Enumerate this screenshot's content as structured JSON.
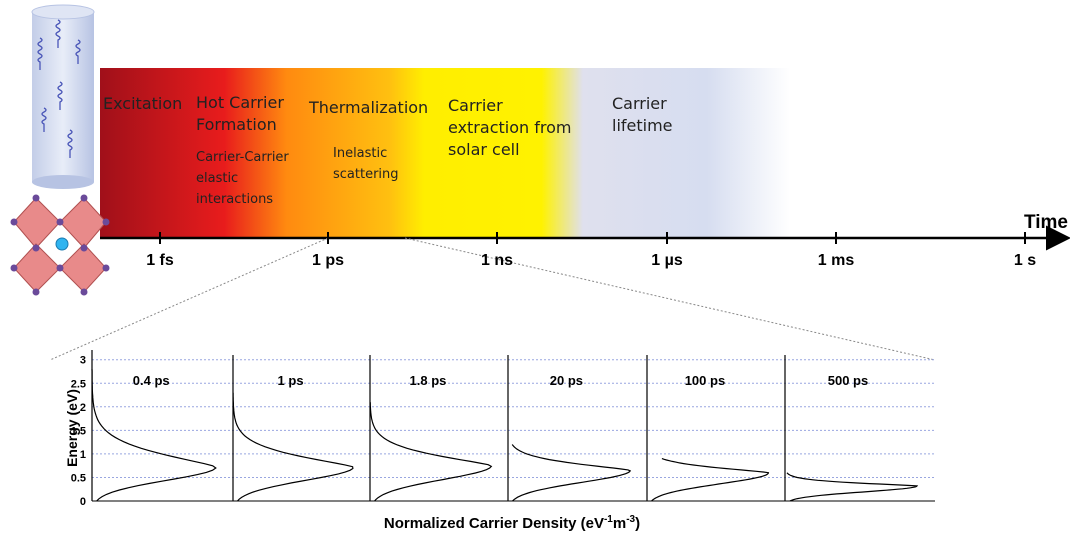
{
  "timeline": {
    "axis_label": "Time",
    "ticks": [
      "1 fs",
      "1 ps",
      "1 ns",
      "1 µs",
      "1 ms",
      "1 s"
    ]
  },
  "phases": [
    {
      "title": "Excitation"
    },
    {
      "title": "Hot Carrier Formation",
      "detail": "Carrier-Carrier elastic interactions"
    },
    {
      "title": "Thermalization",
      "detail": "Inelastic scattering"
    },
    {
      "title": "Carrier extraction from solar cell"
    },
    {
      "title": "Carrier lifetime"
    }
  ],
  "distribution_chart": {
    "ylabel": "Energy (eV)",
    "xlabel": {
      "start": "Normalized Carrier Density (eV",
      "sup1": "-1",
      "mid": "m",
      "sup2": "-3",
      "end": ")"
    },
    "ylim": [
      0,
      3.1
    ],
    "yticks": [
      0,
      0.5,
      1,
      1.5,
      2,
      2.5,
      3
    ],
    "panels": [
      "0.4 ps",
      "1 ps",
      "1.8 ps",
      "20 ps",
      "100 ps",
      "500 ps"
    ]
  }
}
